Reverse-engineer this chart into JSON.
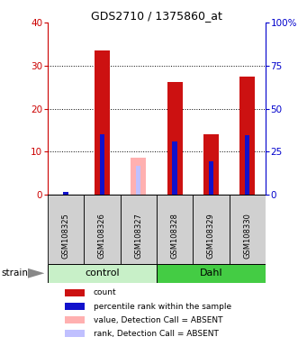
{
  "title": "GDS2710 / 1375860_at",
  "samples": [
    "GSM108325",
    "GSM108326",
    "GSM108327",
    "GSM108328",
    "GSM108329",
    "GSM108330"
  ],
  "groups": [
    "control",
    "control",
    "control",
    "Dahl",
    "Dahl",
    "Dahl"
  ],
  "group_labels": [
    "control",
    "Dahl"
  ],
  "group_colors": [
    "#c8f0c8",
    "#44cc44"
  ],
  "red_values": [
    0.0,
    33.5,
    0.0,
    26.2,
    14.0,
    27.5
  ],
  "blue_values": [
    0.7,
    14.0,
    0.0,
    12.5,
    7.8,
    13.8
  ],
  "absent_red_values": [
    0.0,
    0.0,
    8.7,
    0.0,
    0.0,
    0.0
  ],
  "absent_blue_values": [
    0.0,
    0.0,
    6.8,
    0.0,
    0.0,
    0.0
  ],
  "ylim_left": [
    0,
    40
  ],
  "ylim_right": [
    0,
    100
  ],
  "yticks_left": [
    0,
    10,
    20,
    30,
    40
  ],
  "yticks_right": [
    0,
    25,
    50,
    75,
    100
  ],
  "yticklabels_right": [
    "0",
    "25",
    "50",
    "75",
    "100%"
  ],
  "left_axis_color": "#cc0000",
  "right_axis_color": "#0000cc",
  "bg_color": "#ffffff",
  "bar_red": "#cc1111",
  "bar_blue": "#1111cc",
  "bar_absent_red": "#ffb0b0",
  "bar_absent_blue": "#c0c0ff",
  "legend_items": [
    {
      "color": "#cc1111",
      "label": "count"
    },
    {
      "color": "#1111cc",
      "label": "percentile rank within the sample"
    },
    {
      "color": "#ffb0b0",
      "label": "value, Detection Call = ABSENT"
    },
    {
      "color": "#c0c0ff",
      "label": "rank, Detection Call = ABSENT"
    }
  ],
  "strain_label": "strain",
  "arrow_color": "#888888"
}
